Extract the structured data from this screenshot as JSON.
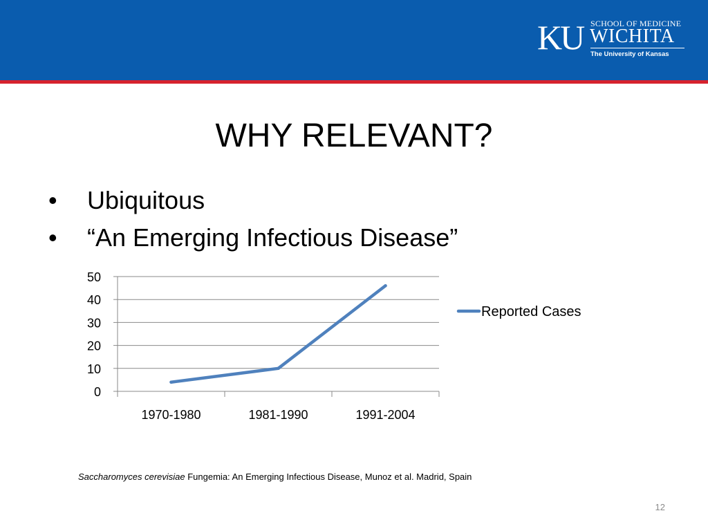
{
  "header": {
    "brand_color": "#0a5cae",
    "accent_rule_color": "#d6222e",
    "logo": {
      "mark": "KU",
      "line1": "SCHOOL OF MEDICINE",
      "line2": "WICHITA",
      "line3": "The University of Kansas"
    }
  },
  "slide": {
    "title": "WHY RELEVANT?",
    "bullets": [
      {
        "marker": "•",
        "text": "Ubiquitous"
      },
      {
        "marker": "•",
        "text": "“An Emerging Infectious Disease”"
      }
    ],
    "citation": {
      "italic": "Saccharomyces cerevisiae",
      "rest": " Fungemia: An Emerging Infectious Disease, Munoz et al. Madrid, Spain"
    },
    "page_number": "12"
  },
  "chart_data": {
    "type": "line",
    "title": "",
    "xlabel": "",
    "ylabel": "",
    "categories": [
      "1970-1980",
      "1981-1990",
      "1991-2004"
    ],
    "series": [
      {
        "name": "Reported Cases",
        "values": [
          4,
          10,
          46
        ],
        "color": "#4f81bd"
      }
    ],
    "ylim": [
      0,
      50
    ],
    "yticks": [
      0,
      10,
      20,
      30,
      40,
      50
    ],
    "grid": true,
    "legend": "right"
  }
}
